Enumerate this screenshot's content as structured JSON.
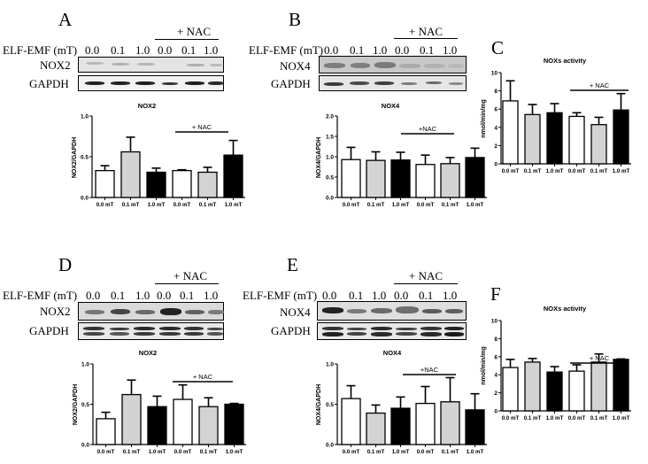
{
  "figure": {
    "panels": [
      {
        "letter": "A",
        "nac_label": "+ NAC",
        "row_header": "ELF-EMF (mT)",
        "lanes": [
          "0.0",
          "0.1",
          "1.0",
          "0.0",
          "0.1",
          "1.0"
        ],
        "blot_rows": [
          "NOX2",
          "GAPDH"
        ]
      },
      {
        "letter": "B",
        "nac_label": "+ NAC",
        "row_header": "ELF-EMF (mT)",
        "lanes": [
          "0.0",
          "0.1",
          "1.0",
          "0.0",
          "0.1",
          "1.0"
        ],
        "blot_rows": [
          "NOX4",
          "GAPDH"
        ]
      },
      {
        "letter": "C"
      },
      {
        "letter": "D",
        "nac_label": "+ NAC",
        "row_header": "ELF-EMF (mT)",
        "lanes": [
          "0.0",
          "0.1",
          "1.0",
          "0.0",
          "0.1",
          "1.0"
        ],
        "blot_rows": [
          "NOX2",
          "GAPDH"
        ]
      },
      {
        "letter": "E",
        "nac_label": "+ NAC",
        "row_header": "ELF-EMF (mT)",
        "lanes": [
          "0.0",
          "0.1",
          "1.0",
          "0.0",
          "0.1",
          "1.0"
        ],
        "blot_rows": [
          "NOX4",
          "GAPDH"
        ]
      },
      {
        "letter": "F"
      }
    ]
  },
  "chart_data": [
    {
      "panel": "A",
      "type": "bar",
      "title": "NOX2",
      "ylabel": "NOX2/GAPDH",
      "xlabel": "",
      "categories": [
        "0.0 mT",
        "0.1 mT",
        "1.0 mT",
        "0.0 mT",
        "0.1 mT",
        "1.0 mT"
      ],
      "values": [
        0.33,
        0.56,
        0.31,
        0.33,
        0.31,
        0.52
      ],
      "errors": [
        0.06,
        0.18,
        0.05,
        0.01,
        0.06,
        0.18
      ],
      "fills": [
        "#ffffff",
        "#d3d3d3",
        "#000000",
        "#ffffff",
        "#d3d3d3",
        "#000000"
      ],
      "ylim": [
        0,
        1.0
      ],
      "yticks": [
        "0.0",
        "0.5",
        "1.0"
      ],
      "annotation": "+ NAC",
      "annotation_span": [
        3,
        5
      ],
      "grid": false,
      "legend": "none"
    },
    {
      "panel": "B",
      "type": "bar",
      "title": "NOX4",
      "ylabel": "NOX4/GAPDH",
      "xlabel": "",
      "categories": [
        "0.0 mT",
        "0.1 mT",
        "1.0 mT",
        "0.0 mT",
        "0.1 mT",
        "1.0 mT"
      ],
      "values": [
        0.93,
        0.91,
        0.92,
        0.81,
        0.83,
        0.98
      ],
      "errors": [
        0.3,
        0.21,
        0.19,
        0.23,
        0.15,
        0.23
      ],
      "fills": [
        "#ffffff",
        "#d3d3d3",
        "#000000",
        "#ffffff",
        "#d3d3d3",
        "#000000"
      ],
      "ylim": [
        0,
        2.0
      ],
      "yticks": [
        "0.0",
        "0.5",
        "1.0",
        "1.5",
        "2.0"
      ],
      "annotation": "+NAC",
      "annotation_span": [
        3,
        5
      ],
      "grid": false,
      "legend": "none"
    },
    {
      "panel": "C",
      "type": "bar",
      "title": "NOXs activity",
      "ylabel": "nmol/min/mg",
      "xlabel": "",
      "categories": [
        "0.0 mT",
        "0.1 mT",
        "1.0 mT",
        "0.0 mT",
        "0.1 mT",
        "1.0 mT"
      ],
      "values": [
        6.9,
        5.4,
        5.6,
        5.2,
        4.3,
        5.9
      ],
      "errors": [
        2.2,
        1.1,
        1.0,
        0.4,
        0.8,
        1.8
      ],
      "fills": [
        "#ffffff",
        "#d3d3d3",
        "#000000",
        "#ffffff",
        "#d3d3d3",
        "#000000"
      ],
      "ylim": [
        0,
        10
      ],
      "yticks": [
        "0",
        "2",
        "4",
        "6",
        "8",
        "10"
      ],
      "annotation": "+ NAC",
      "annotation_span": [
        3,
        5
      ],
      "grid": false,
      "legend": "none"
    },
    {
      "panel": "D",
      "type": "bar",
      "title": "NOX2",
      "ylabel": "NOX2/GAPDH",
      "xlabel": "",
      "categories": [
        "0.0 mT",
        "0.1 mT",
        "1.0 mT",
        "0.0 mT",
        "0.1 mT",
        "1.0 mT"
      ],
      "values": [
        0.32,
        0.62,
        0.47,
        0.56,
        0.47,
        0.5
      ],
      "errors": [
        0.08,
        0.18,
        0.13,
        0.18,
        0.11,
        0.01
      ],
      "fills": [
        "#ffffff",
        "#d3d3d3",
        "#000000",
        "#ffffff",
        "#d3d3d3",
        "#000000"
      ],
      "ylim": [
        0,
        1.0
      ],
      "yticks": [
        "0.0",
        "0.5",
        "1.0"
      ],
      "annotation": "+ NAC",
      "annotation_span": [
        3,
        5
      ],
      "grid": false,
      "legend": "none"
    },
    {
      "panel": "E",
      "type": "bar",
      "title": "NOX4",
      "ylabel": "NOX4/GAPDH",
      "xlabel": "",
      "categories": [
        "0.0 mT",
        "0.1 mT",
        "1.0 mT",
        "0.0 mT",
        "0.1 mT",
        "1.0 mT"
      ],
      "values": [
        0.57,
        0.39,
        0.45,
        0.51,
        0.53,
        0.43
      ],
      "errors": [
        0.16,
        0.1,
        0.14,
        0.21,
        0.3,
        0.2
      ],
      "fills": [
        "#ffffff",
        "#d3d3d3",
        "#000000",
        "#ffffff",
        "#d3d3d3",
        "#000000"
      ],
      "ylim": [
        0,
        1.0
      ],
      "yticks": [
        "0.0",
        "0.5",
        "1.0"
      ],
      "annotation": "+NAC",
      "annotation_span": [
        3,
        5
      ],
      "grid": false,
      "legend": "none"
    },
    {
      "panel": "F",
      "type": "bar",
      "title": "NOXs activity",
      "ylabel": "nmol/min/mg",
      "xlabel": "",
      "categories": [
        "0.0 mT",
        "0.1 mT",
        "1.0 mT",
        "0.0 mT",
        "0.1 mT",
        "1.0 mT"
      ],
      "values": [
        4.8,
        5.4,
        4.3,
        4.4,
        5.4,
        5.7
      ],
      "errors": [
        0.9,
        0.4,
        0.6,
        0.7,
        0.9,
        0.05
      ],
      "fills": [
        "#ffffff",
        "#d3d3d3",
        "#000000",
        "#ffffff",
        "#d3d3d3",
        "#000000"
      ],
      "ylim": [
        0,
        10
      ],
      "yticks": [
        "0",
        "2",
        "4",
        "6",
        "8",
        "10"
      ],
      "annotation": "+ NAC",
      "annotation_span": [
        3,
        5
      ],
      "grid": false,
      "legend": "none"
    }
  ]
}
